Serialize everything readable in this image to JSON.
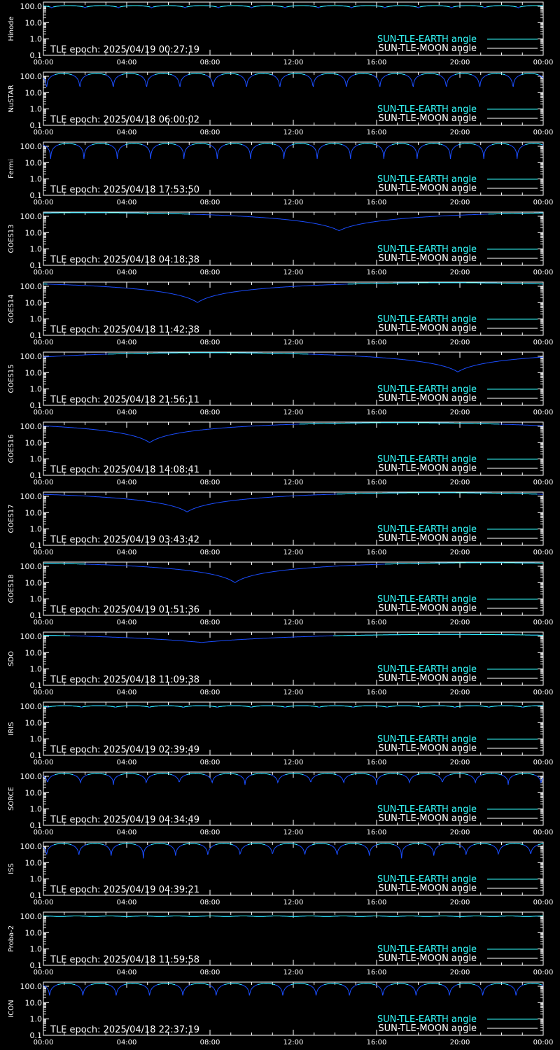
{
  "legend": {
    "earth_label": "SUN-TLE-EARTH angle",
    "moon_label": "SUN-TLE-MOON angle"
  },
  "colors": {
    "background": "#000000",
    "frame": "#ffffff",
    "earth_line": "#33ffff",
    "earth_dip": "#1a4dff",
    "moon_line": "#ffffff",
    "text": "#ffffff"
  },
  "chart_data": [
    {
      "type": "line",
      "ylabel": "Hinode",
      "epoch_text": "TLE epoch: 2025/04/19 00:27:19",
      "yscale": "log",
      "ylim": [
        0.1,
        180
      ],
      "ytick_labels": [
        "100.0",
        "10.0",
        "1.0",
        "0.1"
      ],
      "xtick_labels": [
        "00:00",
        "04:00",
        "08:00",
        "12:00",
        "16:00",
        "20:00",
        "00:00"
      ],
      "x_hours": [
        0,
        24
      ],
      "earth": {
        "model": "periodic",
        "period_hours": 1.6,
        "max_deg": 110,
        "min_deg": 80,
        "offset_hours": 0.4
      },
      "moon": {
        "visible": false
      }
    },
    {
      "type": "line",
      "ylabel": "NuSTAR",
      "epoch_text": "TLE epoch: 2025/04/18 06:00:02",
      "yscale": "log",
      "ylim": [
        0.1,
        180
      ],
      "ytick_labels": [
        "100.0",
        "10.0",
        "1.0",
        "0.1"
      ],
      "xtick_labels": [
        "00:00",
        "04:00",
        "08:00",
        "12:00",
        "16:00",
        "20:00",
        "00:00"
      ],
      "x_hours": [
        0,
        24
      ],
      "earth": {
        "model": "periodic",
        "period_hours": 1.6,
        "max_deg": 150,
        "min_deg": 6,
        "offset_hours": 0.15
      },
      "moon": {
        "visible": false
      }
    },
    {
      "type": "line",
      "ylabel": "Fermi",
      "epoch_text": "TLE epoch: 2025/04/18 17:53:50",
      "yscale": "log",
      "ylim": [
        0.1,
        180
      ],
      "ytick_labels": [
        "100.0",
        "10.0",
        "1.0",
        "0.1"
      ],
      "xtick_labels": [
        "00:00",
        "04:00",
        "08:00",
        "12:00",
        "16:00",
        "20:00",
        "00:00"
      ],
      "x_hours": [
        0,
        24
      ],
      "earth": {
        "model": "periodic",
        "period_hours": 1.6,
        "max_deg": 150,
        "min_deg": 8,
        "offset_hours": 0.35
      },
      "moon": {
        "visible": false
      }
    },
    {
      "type": "line",
      "ylabel": "GOES13",
      "epoch_text": "TLE epoch: 2025/04/18 04:18:38",
      "yscale": "log",
      "ylim": [
        0.1,
        180
      ],
      "ytick_labels": [
        "100.0",
        "10.0",
        "1.0",
        "0.1"
      ],
      "xtick_labels": [
        "00:00",
        "04:00",
        "08:00",
        "12:00",
        "16:00",
        "20:00",
        "00:00"
      ],
      "x_hours": [
        0,
        24
      ],
      "earth": {
        "model": "geo",
        "dip_hour": 14.2,
        "min_deg": 13,
        "max_deg": 165
      },
      "moon": {
        "visible": false
      }
    },
    {
      "type": "line",
      "ylabel": "GOES14",
      "epoch_text": "TLE epoch: 2025/04/18 11:42:38",
      "yscale": "log",
      "ylim": [
        0.1,
        180
      ],
      "ytick_labels": [
        "100.0",
        "10.0",
        "1.0",
        "0.1"
      ],
      "xtick_labels": [
        "00:00",
        "04:00",
        "08:00",
        "12:00",
        "16:00",
        "20:00",
        "00:00"
      ],
      "x_hours": [
        0,
        24
      ],
      "earth": {
        "model": "geo",
        "dip_hour": 7.4,
        "min_deg": 10,
        "max_deg": 165
      },
      "moon": {
        "visible": false
      }
    },
    {
      "type": "line",
      "ylabel": "GOES15",
      "epoch_text": "TLE epoch: 2025/04/18 21:56:11",
      "yscale": "log",
      "ylim": [
        0.1,
        180
      ],
      "ytick_labels": [
        "100.0",
        "10.0",
        "1.0",
        "0.1"
      ],
      "xtick_labels": [
        "00:00",
        "04:00",
        "08:00",
        "12:00",
        "16:00",
        "20:00",
        "00:00"
      ],
      "x_hours": [
        0,
        24
      ],
      "earth": {
        "model": "geo",
        "dip_hour": 19.9,
        "min_deg": 11,
        "max_deg": 165
      },
      "moon": {
        "visible": false
      }
    },
    {
      "type": "line",
      "ylabel": "GOES16",
      "epoch_text": "TLE epoch: 2025/04/18 14:08:41",
      "yscale": "log",
      "ylim": [
        0.1,
        180
      ],
      "ytick_labels": [
        "100.0",
        "10.0",
        "1.0",
        "0.1"
      ],
      "xtick_labels": [
        "00:00",
        "04:00",
        "08:00",
        "12:00",
        "16:00",
        "20:00",
        "00:00"
      ],
      "x_hours": [
        0,
        24
      ],
      "earth": {
        "model": "geo",
        "dip_hour": 5.1,
        "min_deg": 10,
        "max_deg": 165
      },
      "moon": {
        "visible": false
      }
    },
    {
      "type": "line",
      "ylabel": "GOES17",
      "epoch_text": "TLE epoch: 2025/04/19 03:43:42",
      "yscale": "log",
      "ylim": [
        0.1,
        180
      ],
      "ytick_labels": [
        "100.0",
        "10.0",
        "1.0",
        "0.1"
      ],
      "xtick_labels": [
        "00:00",
        "04:00",
        "08:00",
        "12:00",
        "16:00",
        "20:00",
        "00:00"
      ],
      "x_hours": [
        0,
        24
      ],
      "earth": {
        "model": "geo",
        "dip_hour": 6.9,
        "min_deg": 11,
        "max_deg": 165
      },
      "moon": {
        "visible": false
      }
    },
    {
      "type": "line",
      "ylabel": "GOES18",
      "epoch_text": "TLE epoch: 2025/04/19 01:51:36",
      "yscale": "log",
      "ylim": [
        0.1,
        180
      ],
      "ytick_labels": [
        "100.0",
        "10.0",
        "1.0",
        "0.1"
      ],
      "xtick_labels": [
        "00:00",
        "04:00",
        "08:00",
        "12:00",
        "16:00",
        "20:00",
        "00:00"
      ],
      "x_hours": [
        0,
        24
      ],
      "earth": {
        "model": "geo",
        "dip_hour": 9.2,
        "min_deg": 10,
        "max_deg": 165
      },
      "moon": {
        "visible": false
      }
    },
    {
      "type": "line",
      "ylabel": "SDO",
      "epoch_text": "TLE epoch: 2025/04/18 11:09:38",
      "yscale": "log",
      "ylim": [
        0.1,
        180
      ],
      "ytick_labels": [
        "100.0",
        "10.0",
        "1.0",
        "0.1"
      ],
      "xtick_labels": [
        "00:00",
        "04:00",
        "08:00",
        "12:00",
        "16:00",
        "20:00",
        "00:00"
      ],
      "x_hours": [
        0,
        24
      ],
      "earth": {
        "model": "geo",
        "dip_hour": 7.6,
        "min_deg": 42,
        "max_deg": 130
      },
      "moon": {
        "visible": false
      }
    },
    {
      "type": "line",
      "ylabel": "IRIS",
      "epoch_text": "TLE epoch: 2025/04/19 02:39:49",
      "yscale": "log",
      "ylim": [
        0.1,
        180
      ],
      "ytick_labels": [
        "100.0",
        "10.0",
        "1.0",
        "0.1"
      ],
      "xtick_labels": [
        "00:00",
        "04:00",
        "08:00",
        "12:00",
        "16:00",
        "20:00",
        "00:00"
      ],
      "x_hours": [
        0,
        24
      ],
      "earth": {
        "model": "periodic",
        "period_hours": 1.63,
        "max_deg": 108,
        "min_deg": 85,
        "offset_hours": 0.2
      },
      "moon": {
        "visible": false
      }
    },
    {
      "type": "line",
      "ylabel": "SORCE",
      "epoch_text": "TLE epoch: 2025/04/19 04:34:49",
      "yscale": "log",
      "ylim": [
        0.1,
        180
      ],
      "ytick_labels": [
        "100.0",
        "10.0",
        "1.0",
        "0.1"
      ],
      "xtick_labels": [
        "00:00",
        "04:00",
        "08:00",
        "12:00",
        "16:00",
        "20:00",
        "00:00"
      ],
      "x_hours": [
        0,
        24
      ],
      "earth": {
        "model": "periodic",
        "period_hours": 1.58,
        "max_deg": 150,
        "min_deg": 30,
        "offset_hours": 0.2
      },
      "moon": {
        "visible": false
      }
    },
    {
      "type": "line",
      "ylabel": "ISS",
      "epoch_text": "TLE epoch: 2025/04/19 04:39:21",
      "yscale": "log",
      "ylim": [
        0.1,
        180
      ],
      "ytick_labels": [
        "100.0",
        "10.0",
        "1.0",
        "0.1"
      ],
      "xtick_labels": [
        "00:00",
        "04:00",
        "08:00",
        "12:00",
        "16:00",
        "20:00",
        "00:00"
      ],
      "x_hours": [
        0,
        24
      ],
      "earth": {
        "model": "periodic",
        "period_hours": 1.55,
        "max_deg": 150,
        "min_deg": 18,
        "offset_hours": 0.15
      },
      "moon": {
        "visible": false
      }
    },
    {
      "type": "line",
      "ylabel": "Proba-2",
      "epoch_text": "TLE epoch: 2025/04/18 11:59:58",
      "yscale": "log",
      "ylim": [
        0.1,
        180
      ],
      "ytick_labels": [
        "100.0",
        "10.0",
        "1.0",
        "0.1"
      ],
      "xtick_labels": [
        "00:00",
        "04:00",
        "08:00",
        "12:00",
        "16:00",
        "20:00",
        "00:00"
      ],
      "x_hours": [
        0,
        24
      ],
      "earth": {
        "model": "flat",
        "max_deg": 105,
        "min_deg": 97
      },
      "moon": {
        "visible": false
      }
    },
    {
      "type": "line",
      "ylabel": "ICON",
      "epoch_text": "TLE epoch: 2025/04/18 22:37:19",
      "yscale": "log",
      "ylim": [
        0.1,
        180
      ],
      "ytick_labels": [
        "100.0",
        "10.0",
        "1.0",
        "0.1"
      ],
      "xtick_labels": [
        "00:00",
        "04:00",
        "08:00",
        "12:00",
        "16:00",
        "20:00",
        "00:00"
      ],
      "x_hours": [
        0,
        24
      ],
      "earth": {
        "model": "periodic",
        "period_hours": 1.6,
        "max_deg": 150,
        "min_deg": 15,
        "offset_hours": 0.3
      },
      "moon": {
        "visible": false
      }
    }
  ]
}
